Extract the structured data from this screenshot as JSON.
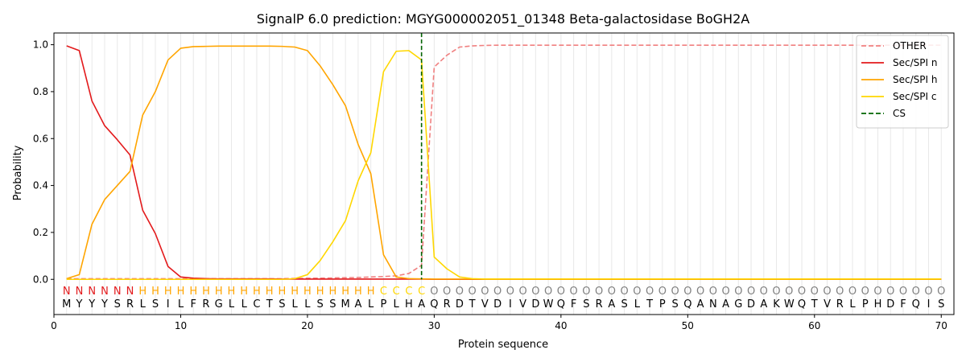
{
  "chart_data": {
    "type": "line",
    "title": "SignalP 6.0 prediction: MGYG000002051_01348 Beta-galactosidase BoGH2A",
    "xlabel": "Protein sequence",
    "ylabel": "Probability",
    "xlim": [
      0,
      71
    ],
    "ylim": [
      -0.15,
      1.05
    ],
    "xticks": [
      0,
      10,
      20,
      30,
      40,
      50,
      60,
      70
    ],
    "yticks": [
      0.0,
      0.2,
      0.4,
      0.6,
      0.8,
      1.0
    ],
    "grid": "vertical lines at each residue",
    "legend_position": "top-right",
    "x": [
      1,
      2,
      3,
      4,
      5,
      6,
      7,
      8,
      9,
      10,
      11,
      12,
      13,
      14,
      15,
      16,
      17,
      18,
      19,
      20,
      21,
      22,
      23,
      24,
      25,
      26,
      27,
      28,
      29,
      30,
      31,
      32,
      33,
      34,
      35,
      36,
      37,
      38,
      39,
      40,
      41,
      42,
      43,
      44,
      45,
      46,
      47,
      48,
      49,
      50,
      51,
      52,
      53,
      54,
      55,
      56,
      57,
      58,
      59,
      60,
      61,
      62,
      63,
      64,
      65,
      66,
      67,
      68,
      69,
      70
    ],
    "sequence": [
      "M",
      "Y",
      "Y",
      "Y",
      "S",
      "R",
      "L",
      "S",
      "I",
      "L",
      "F",
      "R",
      "G",
      "L",
      "L",
      "C",
      "T",
      "S",
      "L",
      "L",
      "S",
      "S",
      "M",
      "A",
      "L",
      "P",
      "L",
      "H",
      "A",
      "Q",
      "R",
      "D",
      "T",
      "V",
      "D",
      "I",
      "V",
      "D",
      "W",
      "Q",
      "F",
      "S",
      "R",
      "A",
      "S",
      "L",
      "T",
      "P",
      "S",
      "Q",
      "A",
      "N",
      "A",
      "G",
      "D",
      "A",
      "K",
      "W",
      "Q",
      "T",
      "V",
      "R",
      "L",
      "P",
      "H",
      "D",
      "F",
      "Q",
      "I",
      "S"
    ],
    "labels": [
      "N",
      "N",
      "N",
      "N",
      "N",
      "N",
      "H",
      "H",
      "H",
      "H",
      "H",
      "H",
      "H",
      "H",
      "H",
      "H",
      "H",
      "H",
      "H",
      "H",
      "H",
      "H",
      "H",
      "H",
      "H",
      "C",
      "C",
      "C",
      "C",
      "O",
      "O",
      "O",
      "O",
      "O",
      "O",
      "O",
      "O",
      "O",
      "O",
      "O",
      "O",
      "O",
      "O",
      "O",
      "O",
      "O",
      "O",
      "O",
      "O",
      "O",
      "O",
      "O",
      "O",
      "O",
      "O",
      "O",
      "O",
      "O",
      "O",
      "O",
      "O",
      "O",
      "O",
      "O",
      "O",
      "O",
      "O",
      "O",
      "O",
      "O"
    ],
    "label_colors": {
      "N": "#e31a1c",
      "H": "#ffa500",
      "C": "#ffd700",
      "O": "#808080"
    },
    "cs_position": 29,
    "series": [
      {
        "name": "OTHER",
        "color": "#f08080",
        "style": "dashed",
        "values": [
          0.003,
          0.003,
          0.003,
          0.003,
          0.003,
          0.003,
          0.003,
          0.003,
          0.003,
          0.003,
          0.003,
          0.003,
          0.003,
          0.003,
          0.003,
          0.003,
          0.003,
          0.003,
          0.004,
          0.005,
          0.005,
          0.006,
          0.007,
          0.008,
          0.01,
          0.012,
          0.015,
          0.025,
          0.06,
          0.905,
          0.955,
          0.99,
          0.995,
          0.997,
          0.998,
          0.998,
          0.998,
          0.998,
          0.998,
          0.998,
          0.998,
          0.998,
          0.998,
          0.998,
          0.998,
          0.998,
          0.998,
          0.998,
          0.998,
          0.998,
          0.998,
          0.998,
          0.998,
          0.998,
          0.998,
          0.998,
          0.998,
          0.998,
          0.998,
          0.998,
          0.998,
          0.998,
          0.998,
          0.998,
          0.998,
          0.998,
          0.998,
          0.998,
          0.998,
          0.998
        ]
      },
      {
        "name": "Sec/SPI n",
        "color": "#e31a1c",
        "style": "solid",
        "values": [
          0.995,
          0.975,
          0.76,
          0.655,
          0.595,
          0.53,
          0.295,
          0.195,
          0.055,
          0.01,
          0.005,
          0.003,
          0.002,
          0.002,
          0.002,
          0.002,
          0.002,
          0.001,
          0.001,
          0.001,
          0.001,
          0.001,
          0.001,
          0.001,
          0.001,
          0.001,
          0.001,
          0.001,
          0.001,
          0.0,
          0.0,
          0.0,
          0.0,
          0.0,
          0.0,
          0.0,
          0.0,
          0.0,
          0.0,
          0.0,
          0.0,
          0.0,
          0.0,
          0.0,
          0.0,
          0.0,
          0.0,
          0.0,
          0.0,
          0.0,
          0.0,
          0.0,
          0.0,
          0.0,
          0.0,
          0.0,
          0.0,
          0.0,
          0.0,
          0.0,
          0.0,
          0.0,
          0.0,
          0.0,
          0.0,
          0.0,
          0.0,
          0.0,
          0.0,
          0.0
        ]
      },
      {
        "name": "Sec/SPI h",
        "color": "#ffa500",
        "style": "solid",
        "values": [
          0.003,
          0.02,
          0.235,
          0.34,
          0.4,
          0.46,
          0.7,
          0.8,
          0.935,
          0.985,
          0.992,
          0.993,
          0.994,
          0.994,
          0.994,
          0.994,
          0.994,
          0.993,
          0.99,
          0.975,
          0.91,
          0.83,
          0.74,
          0.575,
          0.45,
          0.105,
          0.01,
          0.003,
          0.002,
          0.001,
          0.001,
          0.001,
          0.001,
          0.001,
          0.001,
          0.001,
          0.001,
          0.001,
          0.001,
          0.001,
          0.001,
          0.001,
          0.001,
          0.001,
          0.001,
          0.001,
          0.001,
          0.001,
          0.001,
          0.001,
          0.001,
          0.001,
          0.001,
          0.001,
          0.001,
          0.001,
          0.001,
          0.001,
          0.001,
          0.001,
          0.001,
          0.001,
          0.001,
          0.001,
          0.001,
          0.001,
          0.001,
          0.001,
          0.001,
          0.001
        ]
      },
      {
        "name": "Sec/SPI c",
        "color": "#ffd700",
        "style": "solid",
        "values": [
          0.0,
          0.0,
          0.0,
          0.0,
          0.0,
          0.0,
          0.0,
          0.0,
          0.0,
          0.0,
          0.0,
          0.0,
          0.0,
          0.0,
          0.0,
          0.0,
          0.0,
          0.0,
          0.003,
          0.02,
          0.08,
          0.16,
          0.25,
          0.42,
          0.54,
          0.885,
          0.972,
          0.975,
          0.935,
          0.095,
          0.045,
          0.01,
          0.003,
          0.001,
          0.001,
          0.001,
          0.001,
          0.001,
          0.001,
          0.001,
          0.001,
          0.001,
          0.001,
          0.001,
          0.001,
          0.001,
          0.001,
          0.001,
          0.001,
          0.001,
          0.001,
          0.001,
          0.001,
          0.001,
          0.001,
          0.001,
          0.001,
          0.001,
          0.001,
          0.001,
          0.001,
          0.001,
          0.001,
          0.001,
          0.001,
          0.001,
          0.001,
          0.001,
          0.001,
          0.001
        ]
      }
    ],
    "legend": [
      {
        "name": "OTHER",
        "color": "#f08080",
        "style": "dashed"
      },
      {
        "name": "Sec/SPI n",
        "color": "#e31a1c",
        "style": "solid"
      },
      {
        "name": "Sec/SPI h",
        "color": "#ffa500",
        "style": "solid"
      },
      {
        "name": "Sec/SPI c",
        "color": "#ffd700",
        "style": "solid"
      },
      {
        "name": "CS",
        "color": "#006400",
        "style": "dashed"
      }
    ]
  }
}
